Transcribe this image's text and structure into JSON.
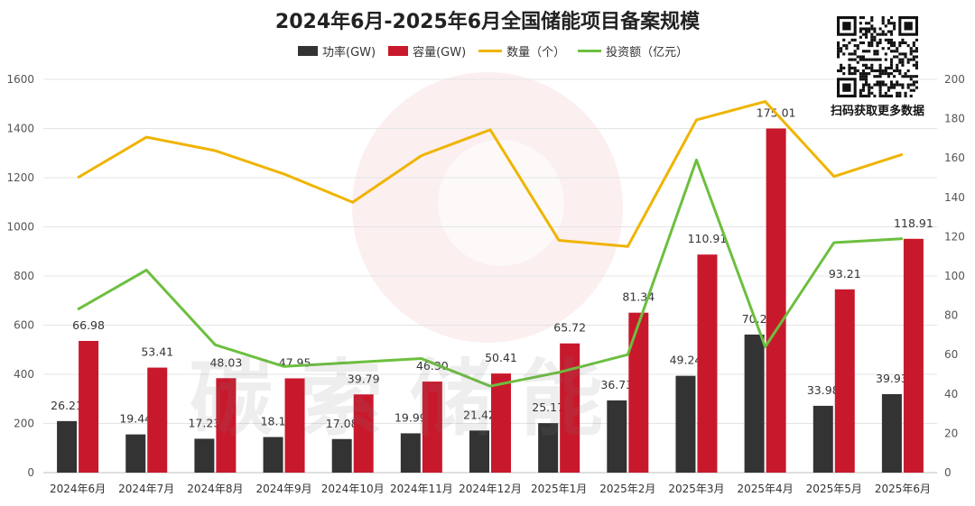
{
  "chart_data": {
    "type": "bar",
    "title": "2024年6月-2025年6月全国储能项目备案规模",
    "categories": [
      "2024年6月",
      "2024年7月",
      "2024年8月",
      "2024年9月",
      "2024年10月",
      "2024年11月",
      "2024年12月",
      "2025年1月",
      "2025年2月",
      "2025年3月",
      "2025年4月",
      "2025年5月",
      "2025年6月"
    ],
    "series": [
      {
        "name": "功率(GW)",
        "kind": "bar",
        "axis": "left",
        "color": "#333333",
        "values": [
          26.21,
          19.44,
          17.23,
          18.1,
          17.08,
          19.99,
          21.42,
          25.17,
          36.73,
          49.24,
          70.22,
          33.98,
          39.93
        ],
        "labels": [
          "26.21",
          "19.44",
          "17.23",
          "18.1",
          "17.08",
          "19.99",
          "21.42",
          "25.17",
          "36.73",
          "49.24",
          "70.2",
          "33.98",
          "39.93"
        ]
      },
      {
        "name": "容量(GW)",
        "kind": "bar",
        "axis": "left",
        "color": "#c8192c",
        "values": [
          66.98,
          53.41,
          48.03,
          47.95,
          39.79,
          46.3,
          50.41,
          65.72,
          81.34,
          110.91,
          175.01,
          93.21,
          118.91
        ],
        "labels": [
          "66.98",
          "53.41",
          "48.03",
          "47.95",
          "39.79",
          "46.30",
          "50.41",
          "65.72",
          "81.34",
          "110.91",
          "175.01",
          "93.21",
          "118.91"
        ]
      },
      {
        "name": "数量（个）",
        "kind": "line",
        "axis": "left",
        "color": "#f0b400",
        "values": [
          1200,
          1365,
          1310,
          1215,
          1100,
          1290,
          1395,
          945,
          920,
          1435,
          1510,
          1205,
          1295
        ]
      },
      {
        "name": "投资额（亿元）",
        "kind": "line",
        "axis": "right",
        "color": "#6cbf3f",
        "values": [
          83,
          103,
          65,
          54,
          56,
          58,
          44,
          51,
          60,
          159,
          64,
          117,
          119
        ]
      }
    ],
    "bar_scale": 8,
    "y_left": {
      "min": 0,
      "max": 1600,
      "ticks": [
        "0",
        "200",
        "400",
        "600",
        "800",
        "1000",
        "1200",
        "1400",
        "1600"
      ]
    },
    "y_right": {
      "min": 0,
      "max": 200,
      "ticks": [
        "0",
        "20",
        "40",
        "60",
        "80",
        "100",
        "120",
        "140",
        "160",
        "180",
        "200"
      ]
    },
    "grid": true,
    "legend_position": "top"
  },
  "legend": {
    "power": "功率(GW)",
    "capacity": "容量(GW)",
    "count": "数量（个）",
    "investment": "投资额（亿元）"
  },
  "qr_caption": "扫码获取更多数据",
  "watermark": "碳索储能"
}
